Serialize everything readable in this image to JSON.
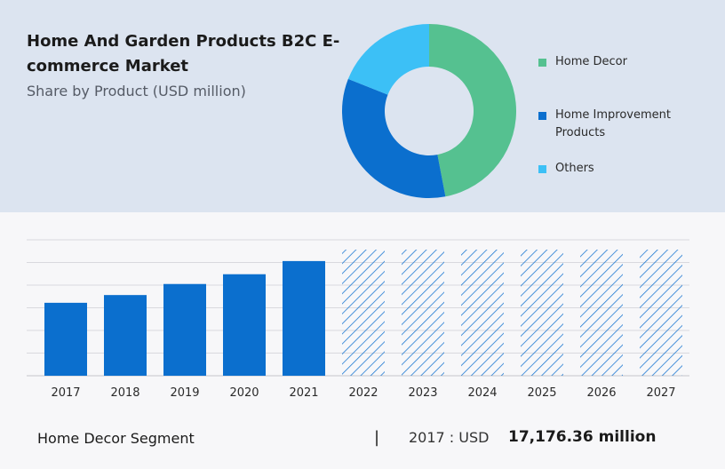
{
  "chart_data": [
    {
      "type": "pie",
      "title": "Home And Garden Products B2C E-commerce Market",
      "subtitle": "Share by Product (USD million)",
      "donut": true,
      "slices": [
        {
          "name": "Home Decor",
          "value": 47,
          "color": "#55c190"
        },
        {
          "name": "Home Improvement Products",
          "value": 34,
          "color": "#0b6fce"
        },
        {
          "name": "Others",
          "value": 19,
          "color": "#3cc0f6"
        }
      ],
      "legend_position": "right"
    },
    {
      "type": "bar",
      "categories": [
        "2017",
        "2018",
        "2019",
        "2020",
        "2021",
        "2022",
        "2023",
        "2024",
        "2025",
        "2026",
        "2027"
      ],
      "values": [
        17176.36,
        19000,
        21600,
        23900,
        27000,
        29700,
        29700,
        29700,
        29700,
        29700,
        29700
      ],
      "forecast_from": "2022",
      "colors": {
        "actual": "#0b6fce",
        "forecast_hatch": "#1f7ad3"
      },
      "ylim": [
        0,
        32000
      ],
      "grid": true
    }
  ],
  "footer": {
    "segment": "Home Decor Segment",
    "divider": "|",
    "year_label": "2017 : USD",
    "value": "17,176.36 million"
  }
}
